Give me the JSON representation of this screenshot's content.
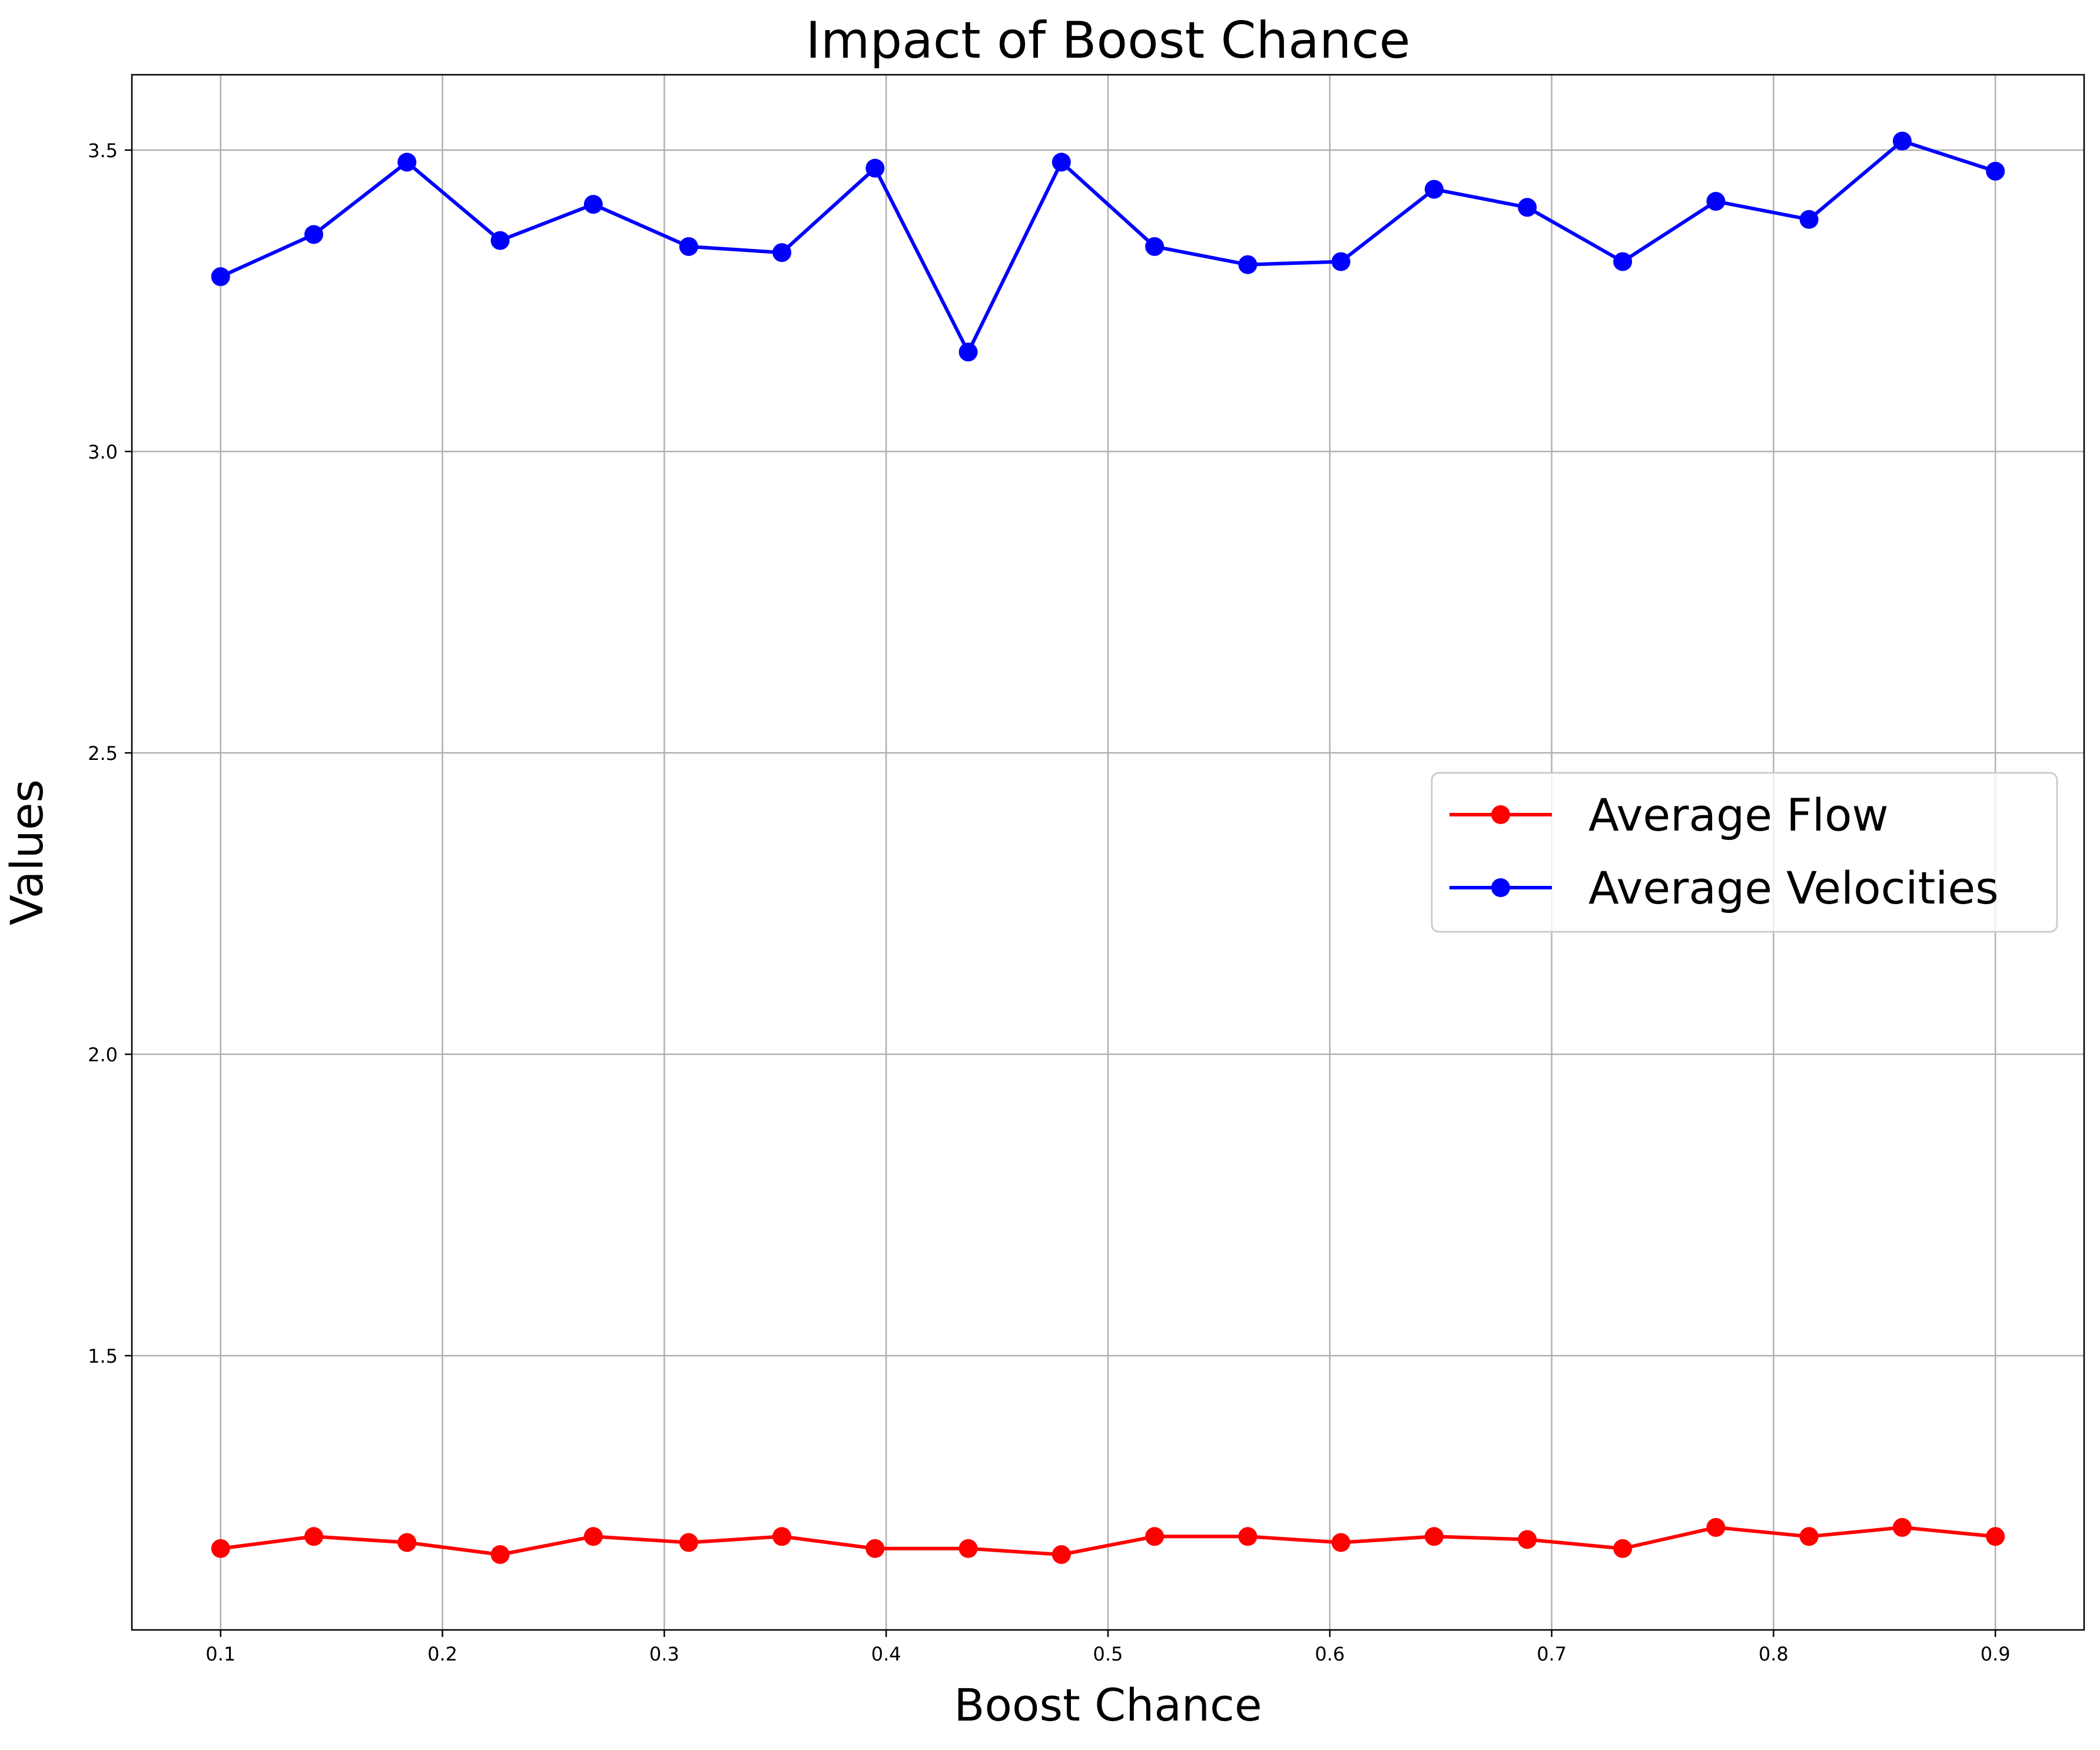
{
  "chart_data": {
    "type": "line",
    "title": "Impact of Boost Chance",
    "xlabel": "Boost Chance",
    "ylabel": "Values",
    "xlim": [
      0.06,
      0.94
    ],
    "ylim": [
      1.045,
      3.625
    ],
    "x_ticks": [
      0.1,
      0.2,
      0.3,
      0.4,
      0.5,
      0.6,
      0.7,
      0.8,
      0.9
    ],
    "x_tick_labels": [
      "0.1",
      "0.2",
      "0.3",
      "0.4",
      "0.5",
      "0.6",
      "0.7",
      "0.8",
      "0.9"
    ],
    "y_ticks": [
      1.5,
      2.0,
      2.5,
      3.0,
      3.5
    ],
    "y_tick_labels": [
      "1.5",
      "2.0",
      "2.5",
      "3.0",
      "3.5"
    ],
    "grid": true,
    "legend_position": "center-right",
    "x": [
      0.1,
      0.142,
      0.184,
      0.226,
      0.268,
      0.311,
      0.353,
      0.395,
      0.437,
      0.479,
      0.521,
      0.563,
      0.605,
      0.647,
      0.689,
      0.732,
      0.774,
      0.816,
      0.858,
      0.9
    ],
    "series": [
      {
        "name": "Average Flow",
        "color": "#ff0000",
        "values": [
          1.18,
          1.2,
          1.19,
          1.17,
          1.2,
          1.19,
          1.2,
          1.18,
          1.18,
          1.17,
          1.2,
          1.2,
          1.19,
          1.2,
          1.195,
          1.18,
          1.215,
          1.2,
          1.215,
          1.2
        ]
      },
      {
        "name": "Average Velocities",
        "color": "#0000ff",
        "values": [
          3.29,
          3.36,
          3.48,
          3.35,
          3.41,
          3.34,
          3.33,
          3.47,
          3.165,
          3.48,
          3.34,
          3.31,
          3.315,
          3.435,
          3.405,
          3.315,
          3.415,
          3.385,
          3.515,
          3.465
        ]
      }
    ]
  }
}
